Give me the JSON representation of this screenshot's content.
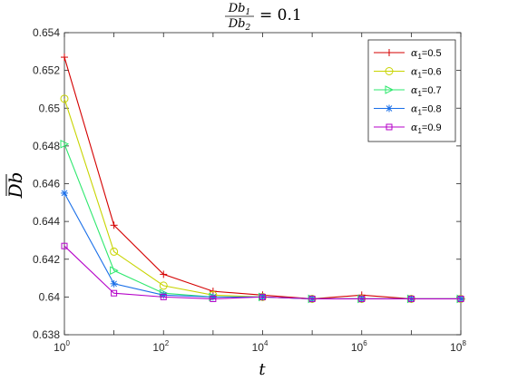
{
  "chart_data": {
    "type": "line",
    "title": {
      "num_base": "Db",
      "num_sub": "1",
      "den_base": "Db",
      "den_sub": "2",
      "rhs": "= 0.1"
    },
    "xlabel": "t",
    "ylabel": "Db",
    "x_scale": "log",
    "xlim": [
      1,
      100000000
    ],
    "ylim": [
      0.638,
      0.654
    ],
    "grid": false,
    "legend_position": "top-right",
    "x_ticks": [
      {
        "value": 1,
        "base": "10",
        "exp": "0"
      },
      {
        "value": 100,
        "base": "10",
        "exp": "2"
      },
      {
        "value": 10000,
        "base": "10",
        "exp": "4"
      },
      {
        "value": 1000000,
        "base": "10",
        "exp": "6"
      },
      {
        "value": 100000000,
        "base": "10",
        "exp": "8"
      }
    ],
    "y_ticks": [
      {
        "value": 0.638,
        "label": "0.638"
      },
      {
        "value": 0.64,
        "label": "0.64"
      },
      {
        "value": 0.642,
        "label": "0.642"
      },
      {
        "value": 0.644,
        "label": "0.644"
      },
      {
        "value": 0.646,
        "label": "0.646"
      },
      {
        "value": 0.648,
        "label": "0.648"
      },
      {
        "value": 0.65,
        "label": "0.65"
      },
      {
        "value": 0.652,
        "label": "0.652"
      },
      {
        "value": 0.654,
        "label": "0.654"
      }
    ],
    "x": [
      1,
      10,
      100,
      1000,
      10000,
      100000,
      1000000,
      10000000,
      100000000
    ],
    "series": [
      {
        "name": "α1=0.5",
        "legend_sym": "α",
        "legend_sub": "1",
        "legend_val": "=0.5",
        "color": "#d40000",
        "marker": "plus",
        "values": [
          0.6527,
          0.6438,
          0.6412,
          0.6403,
          0.6401,
          0.6399,
          0.6401,
          0.6399,
          0.6399
        ]
      },
      {
        "name": "α1=0.6",
        "legend_sym": "α",
        "legend_sub": "1",
        "legend_val": "=0.6",
        "color": "#c8d400",
        "marker": "circle",
        "values": [
          0.6505,
          0.6424,
          0.6406,
          0.6401,
          0.64,
          0.6399,
          0.6399,
          0.6399,
          0.6399
        ]
      },
      {
        "name": "α1=0.7",
        "legend_sym": "α",
        "legend_sub": "1",
        "legend_val": "=0.7",
        "color": "#2ee86e",
        "marker": "triangle-right",
        "values": [
          0.6481,
          0.6414,
          0.6402,
          0.64,
          0.64,
          0.6399,
          0.6399,
          0.6399,
          0.6399
        ]
      },
      {
        "name": "α1=0.8",
        "legend_sym": "α",
        "legend_sub": "1",
        "legend_val": "=0.8",
        "color": "#1a6fe8",
        "marker": "asterisk",
        "values": [
          0.6455,
          0.6407,
          0.6401,
          0.64,
          0.64,
          0.6399,
          0.6399,
          0.6399,
          0.6399
        ]
      },
      {
        "name": "α1=0.9",
        "legend_sym": "α",
        "legend_sub": "1",
        "legend_val": "=0.9",
        "color": "#b400c8",
        "marker": "square",
        "values": [
          0.6427,
          0.6402,
          0.64,
          0.6399,
          0.64,
          0.6399,
          0.6399,
          0.6399,
          0.6399
        ]
      }
    ]
  }
}
